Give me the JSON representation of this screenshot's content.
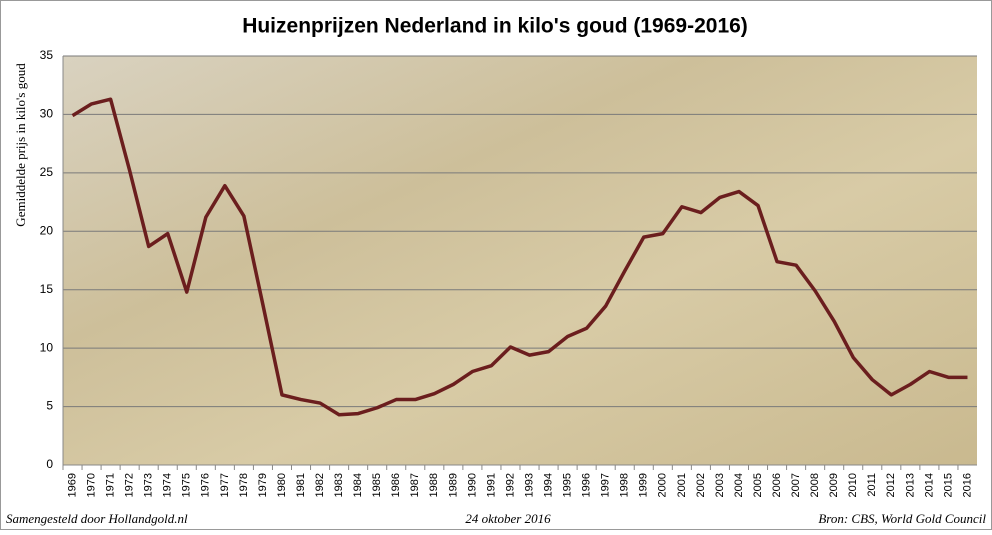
{
  "chart_data": {
    "type": "line",
    "title": "Huizenprijzen Nederland in kilo's goud (1969-2016)",
    "y_label": "Gemiddelde prijs in kilo's goud",
    "categories": [
      "1969",
      "1970",
      "1971",
      "1972",
      "1973",
      "1974",
      "1975",
      "1976",
      "1977",
      "1978",
      "1979",
      "1980",
      "1981",
      "1982",
      "1983",
      "1984",
      "1985",
      "1986",
      "1987",
      "1988",
      "1989",
      "1990",
      "1991",
      "1992",
      "1993",
      "1994",
      "1995",
      "1996",
      "1997",
      "1998",
      "1999",
      "2000",
      "2001",
      "2002",
      "2003",
      "2004",
      "2005",
      "2006",
      "2007",
      "2008",
      "2009",
      "2010",
      "2011",
      "2012",
      "2013",
      "2014",
      "2015",
      "2016"
    ],
    "series": [
      {
        "color": "#6b1e1e",
        "values": [
          29.9,
          30.9,
          31.3,
          25.2,
          18.7,
          19.8,
          14.8,
          21.2,
          23.9,
          21.3,
          13.7,
          6.0,
          5.6,
          5.3,
          4.3,
          4.4,
          4.9,
          5.6,
          5.6,
          6.1,
          6.9,
          8.0,
          8.5,
          10.1,
          9.4,
          9.7,
          11.0,
          11.7,
          13.6,
          16.6,
          19.5,
          19.8,
          22.1,
          21.6,
          22.9,
          23.4,
          22.2,
          17.4,
          17.1,
          14.9,
          12.3,
          9.2,
          7.3,
          6.0,
          6.9,
          8.0,
          7.5,
          7.5
        ]
      }
    ],
    "ylim": [
      0,
      35
    ],
    "yticks": [
      0,
      5,
      10,
      15,
      20,
      25,
      30,
      35
    ],
    "grid": true
  },
  "footer": {
    "left": "Samengesteld door Hollandgold.nl",
    "center": "24 oktober 2016",
    "right": "Bron: CBS, World Gold Council"
  }
}
